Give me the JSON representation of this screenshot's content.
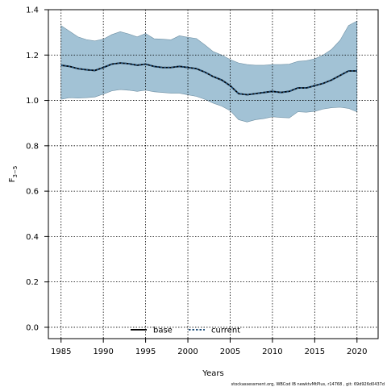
{
  "chart_data": {
    "type": "line",
    "title": "",
    "xlabel": "Years",
    "ylabel_main": "F",
    "ylabel_sub": "3−5",
    "xlim": [
      1983.5,
      2022.5
    ],
    "ylim": [
      -0.05,
      1.4
    ],
    "x_ticks": [
      1985,
      1990,
      1995,
      2000,
      2005,
      2010,
      2015,
      2020
    ],
    "y_ticks": [
      "0.0",
      "0.2",
      "0.4",
      "0.6",
      "0.8",
      "1.0",
      "1.2",
      "1.4"
    ],
    "grid": true,
    "legend_position": "bottom-center",
    "x": [
      1985,
      1986,
      1987,
      1988,
      1989,
      1990,
      1991,
      1992,
      1993,
      1994,
      1995,
      1996,
      1997,
      1998,
      1999,
      2000,
      2001,
      2002,
      2003,
      2004,
      2005,
      2006,
      2007,
      2008,
      2009,
      2010,
      2011,
      2012,
      2013,
      2014,
      2015,
      2016,
      2017,
      2018,
      2019,
      2020
    ],
    "series": [
      {
        "name": "base",
        "color": "#000000",
        "values": [
          1.155,
          1.15,
          1.14,
          1.135,
          1.132,
          1.145,
          1.16,
          1.165,
          1.162,
          1.155,
          1.16,
          1.15,
          1.145,
          1.145,
          1.15,
          1.145,
          1.14,
          1.125,
          1.105,
          1.09,
          1.065,
          1.03,
          1.025,
          1.03,
          1.035,
          1.04,
          1.035,
          1.04,
          1.055,
          1.055,
          1.065,
          1.075,
          1.09,
          1.11,
          1.13,
          1.13
        ]
      },
      {
        "name": "current",
        "color": "#1f4e79",
        "values": [
          1.155,
          1.15,
          1.14,
          1.135,
          1.132,
          1.145,
          1.16,
          1.165,
          1.162,
          1.155,
          1.16,
          1.15,
          1.145,
          1.145,
          1.15,
          1.145,
          1.14,
          1.125,
          1.105,
          1.09,
          1.065,
          1.03,
          1.025,
          1.03,
          1.035,
          1.04,
          1.035,
          1.04,
          1.055,
          1.055,
          1.065,
          1.075,
          1.09,
          1.11,
          1.13,
          1.13
        ]
      }
    ],
    "band": {
      "color": "#a2c2d5",
      "upper": [
        1.33,
        1.305,
        1.28,
        1.268,
        1.262,
        1.27,
        1.29,
        1.303,
        1.293,
        1.28,
        1.295,
        1.272,
        1.27,
        1.267,
        1.285,
        1.278,
        1.273,
        1.245,
        1.215,
        1.2,
        1.18,
        1.165,
        1.158,
        1.155,
        1.155,
        1.158,
        1.158,
        1.16,
        1.172,
        1.175,
        1.183,
        1.2,
        1.225,
        1.265,
        1.33,
        1.35
      ],
      "lower": [
        1.005,
        1.012,
        1.01,
        1.012,
        1.015,
        1.028,
        1.042,
        1.048,
        1.045,
        1.04,
        1.045,
        1.038,
        1.035,
        1.032,
        1.032,
        1.025,
        1.018,
        1.005,
        0.988,
        0.975,
        0.955,
        0.915,
        0.905,
        0.915,
        0.92,
        0.928,
        0.925,
        0.923,
        0.95,
        0.948,
        0.952,
        0.962,
        0.968,
        0.97,
        0.965,
        0.95
      ]
    },
    "caption": "stockassessment.org,  WBCod  IB  newktvMtPlus,  r14768 ,  git:  69d926d0437d"
  }
}
